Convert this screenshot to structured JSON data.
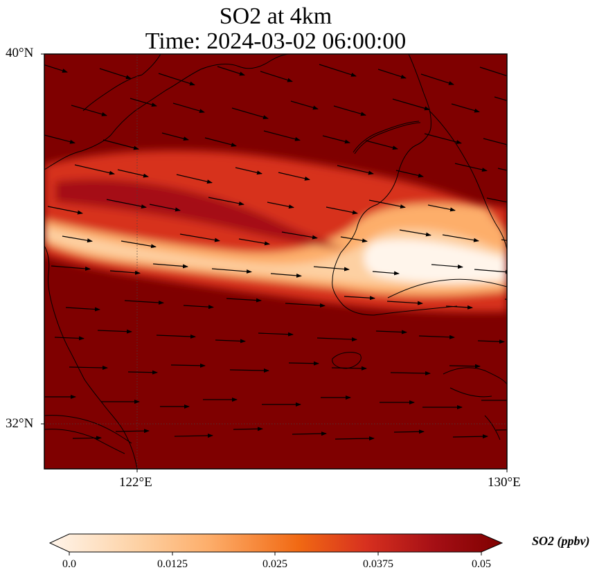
{
  "title_line1": "SO2 at 4km",
  "title_line2": "Time: 2024-03-02 06:00:00",
  "axes": {
    "y_ticks": [
      "40°N",
      "32°N"
    ],
    "x_ticks": [
      "122°E",
      "130°E"
    ]
  },
  "colorbar": {
    "label": "SO2 (ppbv)",
    "ticks": [
      "0.0",
      "0.0125",
      "0.025",
      "0.0375",
      "0.05"
    ],
    "colors": [
      "#fff5eb",
      "#fdd0a2",
      "#fdae6b",
      "#f16913",
      "#d94801",
      "#a50f15",
      "#7f0000"
    ]
  },
  "map": {
    "background_color": "#7f0000",
    "plume_colors": [
      "#fdd0a2",
      "#fdae6b",
      "#d7301f",
      "#a50f15"
    ]
  }
}
